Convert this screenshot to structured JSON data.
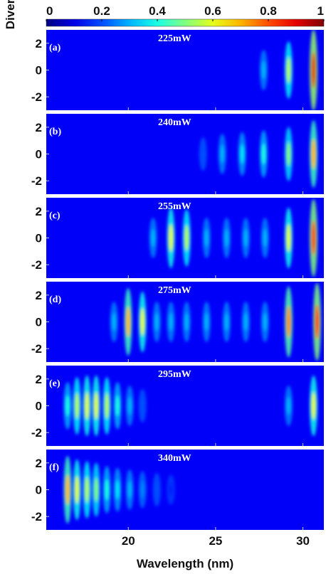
{
  "chart_data": {
    "type": "heatmap",
    "x_label": "Wavelength (nm)",
    "y_label": "Divergence angle (mrad)",
    "xlim": [
      15.3,
      31.2
    ],
    "xticks": [
      20,
      25,
      30
    ],
    "ylim": [
      -3,
      3
    ],
    "yticks": [
      2,
      0,
      -2
    ],
    "clim": [
      0,
      1
    ],
    "colorbar_ticks": [
      0,
      0.2,
      0.4,
      0.6,
      0.8,
      1
    ],
    "colormap": "jet",
    "panels": [
      {
        "label": "(a)",
        "power": "225mW",
        "peaks": {
          "wavelength": [
            27.75,
            29.18,
            30.61
          ],
          "intensity": [
            0.3,
            0.55,
            0.9
          ]
        }
      },
      {
        "label": "(b)",
        "power": "240mW",
        "peaks": {
          "wavelength": [
            24.28,
            25.38,
            26.52,
            27.75,
            29.18,
            30.61
          ],
          "intensity": [
            0.2,
            0.3,
            0.35,
            0.4,
            0.5,
            0.7
          ]
        }
      },
      {
        "label": "(c)",
        "power": "255mW",
        "peaks": {
          "wavelength": [
            21.42,
            22.44,
            23.34,
            24.48,
            25.63,
            26.73,
            27.83,
            29.18,
            30.61
          ],
          "intensity": [
            0.3,
            0.6,
            0.55,
            0.3,
            0.3,
            0.3,
            0.3,
            0.6,
            0.85
          ]
        }
      },
      {
        "label": "(d)",
        "power": "275mW",
        "peaks": {
          "wavelength": [
            19.18,
            19.99,
            20.81,
            21.63,
            22.44,
            23.34,
            24.48,
            25.63,
            26.73,
            27.83,
            29.18,
            30.81
          ],
          "intensity": [
            0.3,
            0.7,
            0.6,
            0.3,
            0.3,
            0.3,
            0.3,
            0.3,
            0.3,
            0.3,
            0.75,
            0.85
          ]
        }
      },
      {
        "label": "(e)",
        "power": "295mW",
        "peaks": {
          "wavelength": [
            16.52,
            17.06,
            17.63,
            18.16,
            18.77,
            19.38,
            20.08,
            20.81,
            29.18,
            30.61
          ],
          "intensity": [
            0.4,
            0.55,
            0.6,
            0.6,
            0.55,
            0.4,
            0.3,
            0.2,
            0.3,
            0.6
          ]
        }
      },
      {
        "label": "(f)",
        "power": "340mW",
        "peaks": {
          "wavelength": [
            16.52,
            17.06,
            17.63,
            18.16,
            18.77,
            19.38,
            20.08,
            20.81,
            21.63,
            22.44
          ],
          "intensity": [
            0.7,
            0.6,
            0.55,
            0.5,
            0.4,
            0.35,
            0.3,
            0.25,
            0.2,
            0.15
          ]
        }
      }
    ]
  }
}
